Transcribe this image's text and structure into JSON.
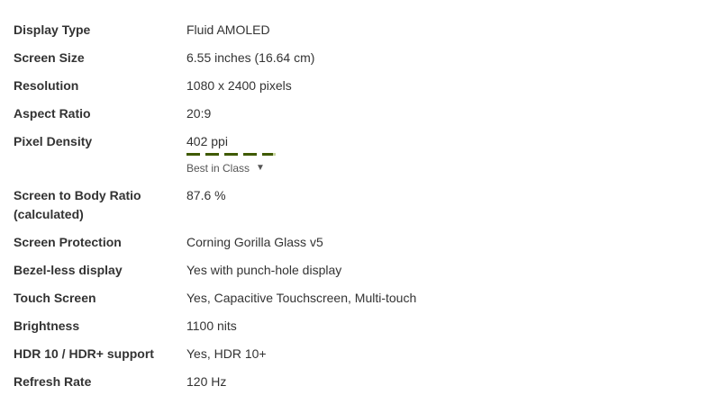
{
  "specs": [
    {
      "label": "Display Type",
      "value": "Fluid AMOLED"
    },
    {
      "label": "Screen Size",
      "value": "6.55 inches (16.64 cm)"
    },
    {
      "label": "Resolution",
      "value": "1080 x 2400 pixels"
    },
    {
      "label": "Aspect Ratio",
      "value": "20:9"
    },
    {
      "label": "Pixel Density",
      "value": "402 ppi",
      "rating": {
        "level": 0.95,
        "badge": "Best in Class",
        "badge_icon": "caret-down-icon"
      }
    },
    {
      "label": "Screen to Body Ratio (calculated)",
      "value": "87.6 %"
    },
    {
      "label": "Screen Protection",
      "value": "Corning Gorilla Glass v5"
    },
    {
      "label": "Bezel-less display",
      "value": "Yes with punch-hole display"
    },
    {
      "label": "Touch Screen",
      "value": "Yes, Capacitive Touchscreen, Multi-touch"
    },
    {
      "label": "Brightness",
      "value": "1100 nits"
    },
    {
      "label": "HDR 10 / HDR+ support",
      "value": "Yes, HDR 10+"
    },
    {
      "label": "Refresh Rate",
      "value": "120 Hz"
    }
  ],
  "colors": {
    "rating_fill": "#3f5a00",
    "rating_empty": "#c8d7a0"
  }
}
